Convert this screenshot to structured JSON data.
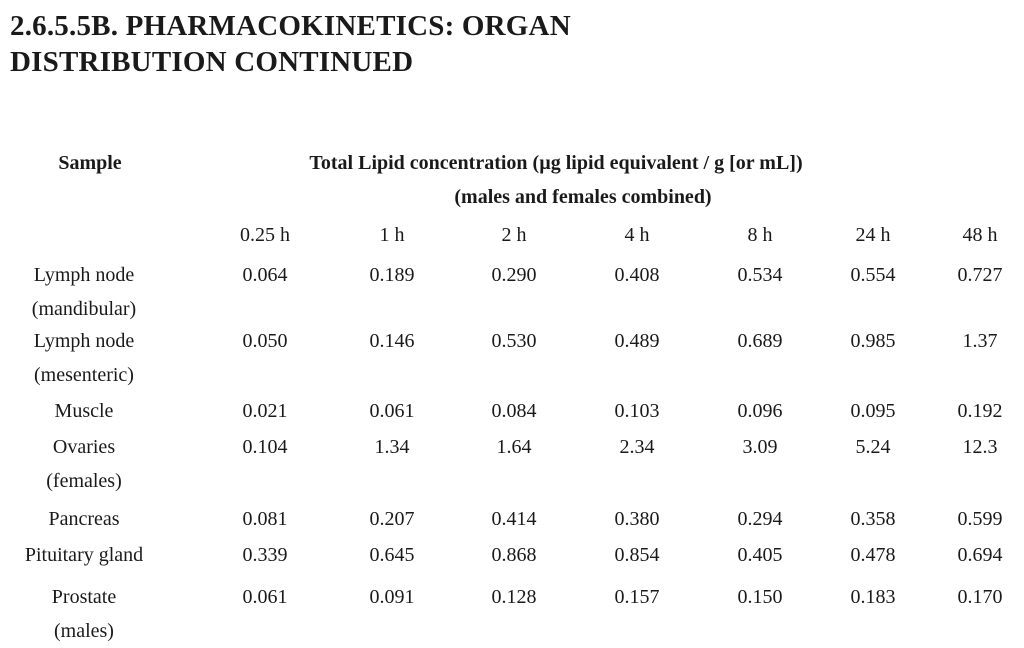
{
  "heading": "2.6.5.5B. PHARMACOKINETICS: ORGAN DISTRIBUTION CONTINUED",
  "table": {
    "sample_header": "Sample",
    "header_line1": "Total Lipid concentration (µg lipid equivalent / g [or mL])",
    "header_line2": "(males and females combined)",
    "timepoints": [
      "0.25 h",
      "1 h",
      "2 h",
      "4 h",
      "8 h",
      "24 h",
      "48 h"
    ],
    "rows": [
      {
        "sample": "Lymph node (mandibular)",
        "sample_lines": [
          "Lymph node",
          "(mandibular)"
        ],
        "values": [
          "0.064",
          "0.189",
          "0.290",
          "0.408",
          "0.534",
          "0.554",
          "0.727"
        ]
      },
      {
        "sample": "Lymph node (mesenteric)",
        "sample_lines": [
          "Lymph node",
          "(mesenteric)"
        ],
        "values": [
          "0.050",
          "0.146",
          "0.530",
          "0.489",
          "0.689",
          "0.985",
          "1.37"
        ]
      },
      {
        "sample": "Muscle",
        "sample_lines": [
          "Muscle"
        ],
        "values": [
          "0.021",
          "0.061",
          "0.084",
          "0.103",
          "0.096",
          "0.095",
          "0.192"
        ]
      },
      {
        "sample": "Ovaries (females)",
        "sample_lines": [
          "Ovaries",
          "(females)"
        ],
        "values": [
          "0.104",
          "1.34",
          "1.64",
          "2.34",
          "3.09",
          "5.24",
          "12.3"
        ]
      },
      {
        "sample": "Pancreas",
        "sample_lines": [
          "Pancreas"
        ],
        "values": [
          "0.081",
          "0.207",
          "0.414",
          "0.380",
          "0.294",
          "0.358",
          "0.599"
        ]
      },
      {
        "sample": "Pituitary gland",
        "sample_lines": [
          "Pituitary gland"
        ],
        "values": [
          "0.339",
          "0.645",
          "0.868",
          "0.854",
          "0.405",
          "0.478",
          "0.694"
        ]
      },
      {
        "sample": "Prostate (males)",
        "sample_lines": [
          "Prostate",
          "(males)"
        ],
        "values": [
          "0.061",
          "0.091",
          "0.128",
          "0.157",
          "0.150",
          "0.183",
          "0.170"
        ]
      }
    ]
  }
}
